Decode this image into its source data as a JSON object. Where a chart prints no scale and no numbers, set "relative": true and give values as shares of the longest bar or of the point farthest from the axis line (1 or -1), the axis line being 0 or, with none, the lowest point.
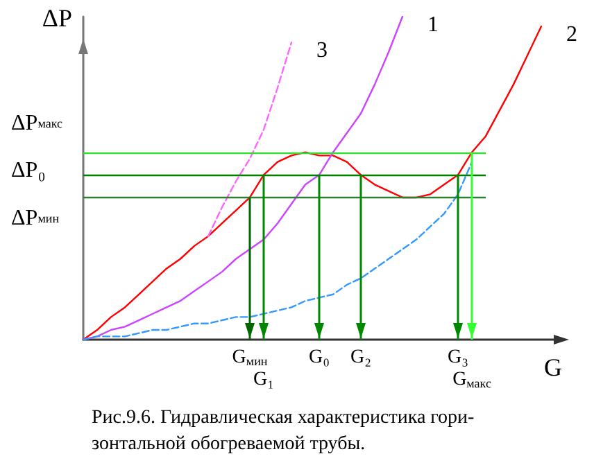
{
  "chart_data": {
    "type": "line",
    "relative": true,
    "xlabel": "G",
    "ylabel": "ΔP",
    "legend": false,
    "grid": false,
    "categories": [
      null,
      null,
      null,
      null,
      null,
      null,
      null,
      null,
      null,
      null,
      null,
      null,
      "G$_{мин}$",
      "G₁",
      null,
      null,
      null,
      "G₀",
      null,
      null,
      "G₂",
      null,
      null,
      null,
      null,
      null,
      null,
      "G₃",
      "G$_{макс}$",
      null,
      null,
      null,
      null,
      null,
      null
    ],
    "series": [
      {
        "name": "2",
        "color": "#ff0000",
        "values": [
          0,
          0.03,
          0.07,
          0.1,
          0.14,
          0.18,
          0.22,
          0.25,
          0.29,
          0.32,
          0.36,
          0.4,
          0.44,
          0.51,
          0.55,
          0.57,
          0.58,
          0.57,
          0.57,
          0.55,
          0.51,
          0.48,
          0.46,
          0.44,
          0.44,
          0.45,
          0.48,
          0.51,
          0.58,
          0.63,
          0.71,
          0.79,
          0.88,
          0.97,
          null
        ]
      },
      {
        "name": "1",
        "color": "#cc44ff",
        "values": [
          0,
          0.01,
          0.03,
          0.04,
          0.06,
          0.08,
          0.1,
          0.12,
          0.15,
          0.18,
          0.21,
          0.25,
          0.28,
          0.31,
          0.36,
          0.42,
          0.48,
          0.51,
          0.58,
          0.64,
          0.7,
          0.79,
          0.89,
          1,
          null,
          null,
          null,
          null,
          null,
          null,
          null,
          null,
          null,
          null,
          null
        ]
      },
      {
        "name": "3",
        "color": "#ff66ff",
        "line_style": "dashed",
        "values": [
          null,
          null,
          null,
          null,
          null,
          null,
          null,
          null,
          null,
          0.32,
          0.41,
          0.49,
          0.56,
          0.65,
          0.78,
          0.92,
          null,
          null,
          null,
          null,
          null,
          null,
          null,
          null,
          null,
          null,
          null,
          null,
          null,
          null,
          null,
          null,
          null,
          null,
          null
        ]
      },
      {
        "color": "#3399ff",
        "line_style": "dashed",
        "values": [
          0,
          0.01,
          0.01,
          0.01,
          0.02,
          0.03,
          0.03,
          0.04,
          0.05,
          0.05,
          0.06,
          0.07,
          0.07,
          0.08,
          0.09,
          0.1,
          0.12,
          0.13,
          0.14,
          0.17,
          0.19,
          0.22,
          0.25,
          0.28,
          0.31,
          0.35,
          0.39,
          0.45,
          0.55,
          null,
          null,
          null,
          null,
          null,
          null
        ]
      }
    ],
    "ref_lines": [
      {
        "axis": "y",
        "value": 0.58,
        "label": "ΔP$_{макс}$",
        "color": "#33dd33"
      },
      {
        "axis": "y",
        "value": 0.51,
        "label": "ΔP₀",
        "color": "#008000"
      },
      {
        "axis": "y",
        "value": 0.44,
        "label": "ΔP$_{мин}$",
        "color": "#2e7d32"
      },
      {
        "axis": "x",
        "value": "G$_{мин}$",
        "color": "#006600"
      },
      {
        "axis": "x",
        "value": "G₁",
        "color": "#008800"
      },
      {
        "axis": "x",
        "value": "G₀",
        "color": "#008800"
      },
      {
        "axis": "x",
        "value": "G₂",
        "color": "#008800"
      },
      {
        "axis": "x",
        "value": "G₃",
        "color": "#008800"
      },
      {
        "axis": "x",
        "value": "G$_{макс}$",
        "color": "#33ff33"
      }
    ],
    "annotations": [
      "Рис.9.6. Гидравлическая характеристика гори-\nзонтальной обогреваемой трубы."
    ]
  }
}
